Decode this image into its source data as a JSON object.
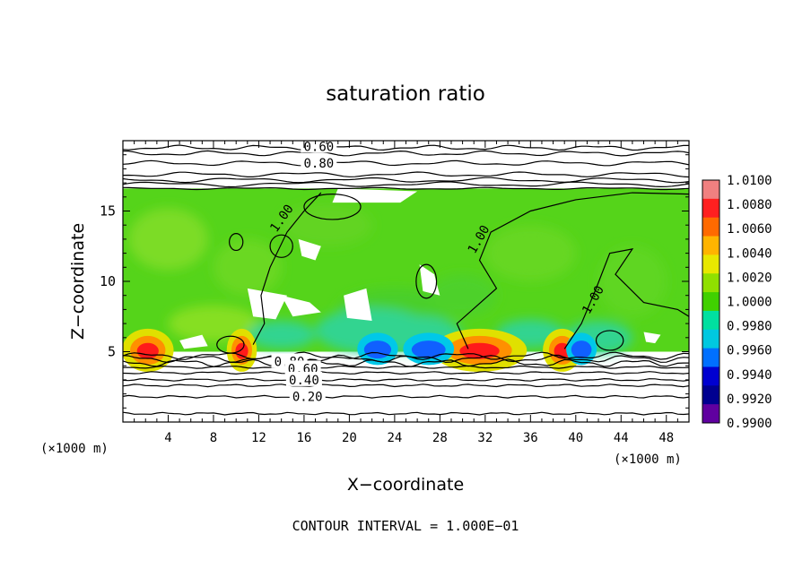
{
  "chart_data": {
    "type": "heatmap",
    "title": "saturation ratio",
    "xlabel": "X−coordinate",
    "ylabel": "Z−coordinate",
    "x_unit": "(×1000 m)",
    "z_unit": "(×1000 m)",
    "xlim": [
      0,
      50
    ],
    "ylim": [
      0,
      20
    ],
    "x_ticks": [
      4,
      8,
      12,
      16,
      20,
      24,
      28,
      32,
      36,
      40,
      44,
      48
    ],
    "y_ticks": [
      5,
      10,
      15
    ],
    "footer": "CONTOUR INTERVAL = 1.000E−01",
    "colorbar": {
      "levels": [
        "1.0100",
        "1.0080",
        "1.0060",
        "1.0040",
        "1.0020",
        "1.0000",
        "0.9980",
        "0.9960",
        "0.9940",
        "0.9920",
        "0.9900"
      ],
      "colors": [
        "#f08080",
        "#ff2020",
        "#ff6a00",
        "#ffb400",
        "#e8e800",
        "#90e000",
        "#40d000",
        "#00e0a0",
        "#00c8e0",
        "#0070ff",
        "#0000d0",
        "#000090",
        "#6000a0"
      ]
    },
    "cloud_base_z": 5,
    "cloud_top_z": 16.6,
    "contour_labels": [
      {
        "text": "0.60",
        "x": 17.3,
        "z": 19.6
      },
      {
        "text": "0.80",
        "x": 17.3,
        "z": 18.4
      },
      {
        "text": "1.00",
        "x": 14.0,
        "z": 14.5
      },
      {
        "text": "1.00",
        "x": 31.4,
        "z": 13.0
      },
      {
        "text": "1.00",
        "x": 41.5,
        "z": 8.7
      },
      {
        "text": "0.80",
        "x": 14.7,
        "z": 4.3
      },
      {
        "text": "0.60",
        "x": 15.9,
        "z": 3.8
      },
      {
        "text": "0.40",
        "x": 16.0,
        "z": 3.0
      },
      {
        "text": "0.20",
        "x": 16.3,
        "z": 1.8
      }
    ],
    "contours_below": [
      4.7,
      4.5,
      4.2,
      3.9,
      3.5,
      3.0,
      2.6,
      1.8,
      0.6
    ],
    "contours_above": [
      16.9,
      17.2,
      17.6,
      18.4,
      19.1,
      19.5
    ]
  }
}
